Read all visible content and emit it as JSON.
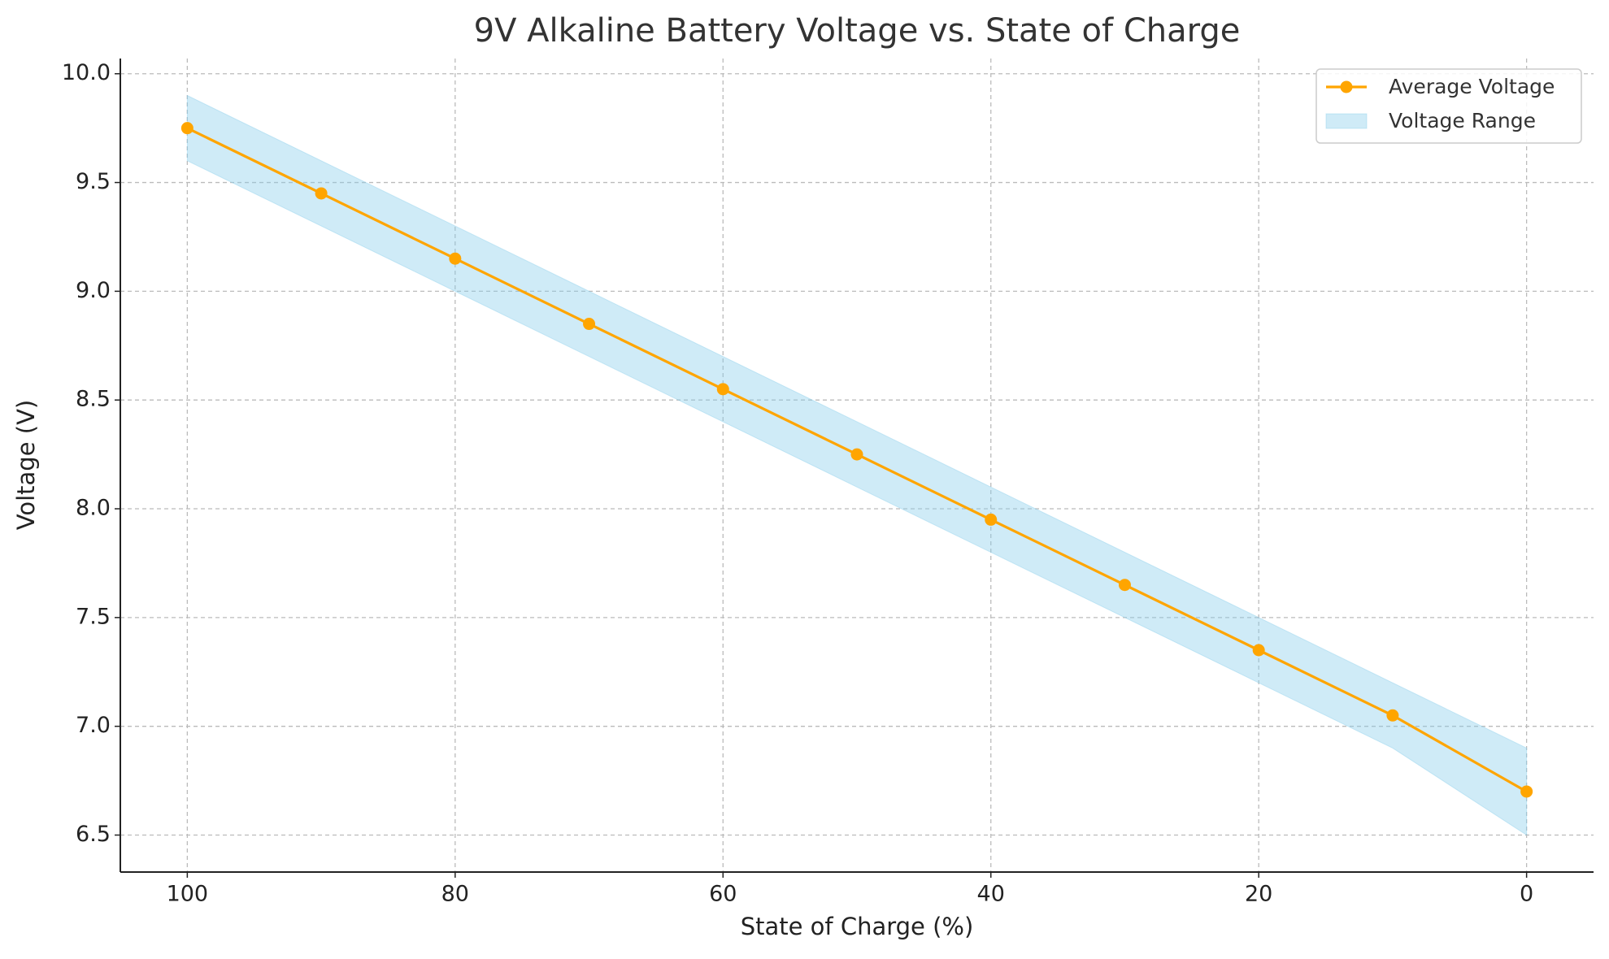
{
  "chart_data": {
    "type": "line",
    "title": "9V Alkaline Battery Voltage vs. State of Charge",
    "x_label": "State of Charge (%)",
    "y_label": "Voltage (V)",
    "x": [
      100,
      90,
      80,
      70,
      60,
      50,
      40,
      30,
      20,
      10,
      0
    ],
    "series": [
      {
        "name": "Average Voltage",
        "color": "#ffa500",
        "values": [
          9.75,
          9.45,
          9.15,
          8.85,
          8.55,
          8.25,
          7.95,
          7.65,
          7.35,
          7.05,
          6.7
        ]
      },
      {
        "name": "Voltage Range",
        "color": "#87ceeb",
        "upper": [
          9.9,
          9.6,
          9.3,
          9.0,
          8.7,
          8.4,
          8.1,
          7.8,
          7.5,
          7.2,
          6.9
        ],
        "lower": [
          9.6,
          9.3,
          9.0,
          8.7,
          8.4,
          8.1,
          7.8,
          7.5,
          7.2,
          6.9,
          6.5
        ]
      }
    ],
    "xlim": [
      105,
      -5
    ],
    "xticks": [
      100,
      80,
      60,
      40,
      20,
      0
    ],
    "ylim": [
      6.33,
      10.07
    ],
    "yticks": [
      6.5,
      {
        "value": 7,
        "label": "7.0"
      },
      7.5,
      {
        "value": 8,
        "label": "8.0"
      },
      8.5,
      {
        "value": 9,
        "label": "9.0"
      },
      9.5,
      {
        "value": 10,
        "label": "10.0"
      }
    ],
    "grid": true,
    "legend": "upper right"
  }
}
